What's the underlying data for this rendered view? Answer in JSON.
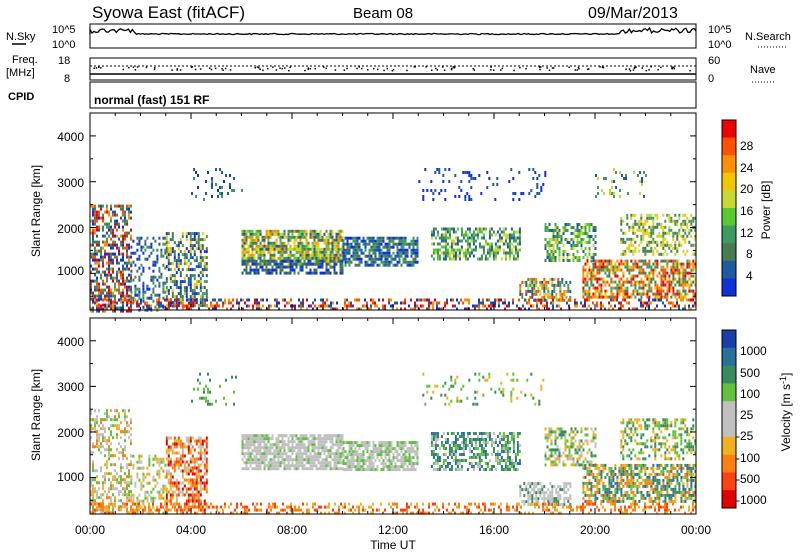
{
  "header": {
    "title": "Syowa East (fitACF)",
    "beam": "Beam 08",
    "date": "09/Mar/2013"
  },
  "noise_panel": {
    "left_label": "N.Sky",
    "right_label": "N.Search",
    "y_ticks_left": [
      "10^5",
      "10^0"
    ],
    "y_ticks_right": [
      "10^5",
      "10^0"
    ]
  },
  "freq_panel": {
    "left_label_line1": "Freq.",
    "left_label_line2": "[MHz]",
    "right_label": "Nave",
    "y_ticks_left": [
      "18",
      "8"
    ],
    "y_ticks_right": [
      "60",
      "0"
    ]
  },
  "cpid_panel": {
    "label": "CPID",
    "text": "normal (fast) 151 RF"
  },
  "chart_data": [
    {
      "type": "heatmap",
      "name": "power",
      "ylabel": "Slant Range [km]",
      "yticks": [
        "4000",
        "3000",
        "2000",
        "1000"
      ],
      "ylim": [
        200,
        4500
      ],
      "colorbar": {
        "label": "Power [dB]",
        "ticks": [
          "28",
          "24",
          "20",
          "16",
          "12",
          "8",
          "4"
        ],
        "colors": [
          "#f00000",
          "#ff5000",
          "#ff9000",
          "#f0c800",
          "#c8d832",
          "#58c830",
          "#3e9a60",
          "#4a7a50",
          "#1e5aa0",
          "#1030d8"
        ]
      },
      "xticks": [
        "00:00",
        "04:00",
        "08:00",
        "12:00",
        "16:00",
        "20:00",
        "00:00"
      ]
    },
    {
      "type": "heatmap",
      "name": "velocity",
      "ylabel": "Slant Range [km]",
      "yticks": [
        "4000",
        "3000",
        "2000",
        "1000"
      ],
      "ylim": [
        200,
        4500
      ],
      "colorbar": {
        "label": "Velocity [m s^-1]",
        "ticks": [
          "1000",
          "500",
          "100",
          "25",
          "-25",
          "-100",
          "-500",
          "-1000"
        ],
        "colors": [
          "#1a3ea8",
          "#2a6e9a",
          "#3a8a60",
          "#60c040",
          "#c0c0c0",
          "#c0c0c0",
          "#f0b020",
          "#ff8010",
          "#ff4010",
          "#e00000"
        ]
      },
      "xticks": [
        "00:00",
        "04:00",
        "08:00",
        "12:00",
        "16:00",
        "20:00",
        "00:00"
      ],
      "xlabel": "Time UT"
    }
  ]
}
